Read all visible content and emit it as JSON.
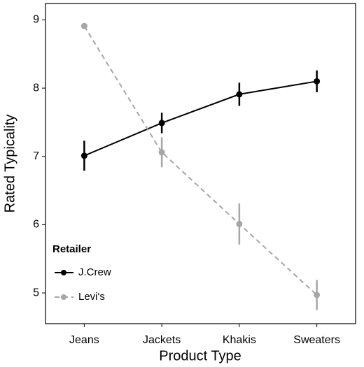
{
  "chart_data": {
    "type": "line",
    "x_label": "Product Type",
    "y_label": "Rated Typicality",
    "categories": [
      "Jeans",
      "Jackets",
      "Khakis",
      "Sweaters"
    ],
    "series": [
      {
        "name": "J.Crew",
        "color": "#000000",
        "linestyle": "solid",
        "values": [
          7.01,
          7.49,
          7.91,
          8.1
        ],
        "errors": [
          0.22,
          0.15,
          0.17,
          0.16
        ]
      },
      {
        "name": "Levi's",
        "color": "#a6a6a6",
        "linestyle": "dashed",
        "values": [
          8.91,
          7.06,
          6.01,
          4.97
        ],
        "errors": [
          0.03,
          0.22,
          0.3,
          0.22
        ]
      }
    ],
    "ylim": [
      4.55,
      9.24
    ],
    "yticks": [
      5,
      6,
      7,
      8,
      9
    ],
    "grid": false,
    "legend_title": "Retailer",
    "legend_position": "lower-left"
  }
}
